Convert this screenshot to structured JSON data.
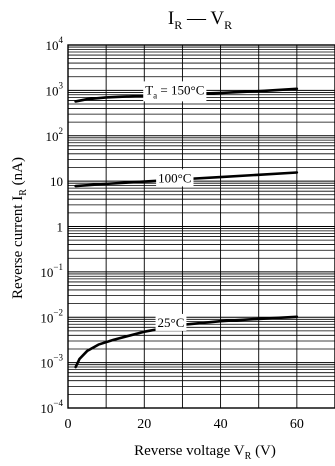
{
  "chart_data": {
    "type": "line",
    "title": {
      "main": "I",
      "main_sub": "R",
      "sep": " — ",
      "tail": "V",
      "tail_sub": "R"
    },
    "xlabel": {
      "main": "Reverse voltage  V",
      "sub": "R",
      "unit": "  (V)"
    },
    "ylabel": {
      "main": "Reverse current  I",
      "sub": "R",
      "unit": "  (nA)"
    },
    "x_scale": "linear",
    "y_scale": "log",
    "xlim": [
      0,
      70
    ],
    "ylim": [
      0.0001,
      10000
    ],
    "grid": true,
    "x_ticks": [
      {
        "value": 0,
        "label": "0"
      },
      {
        "value": 20,
        "label": "20"
      },
      {
        "value": 40,
        "label": "40"
      },
      {
        "value": 60,
        "label": "60"
      }
    ],
    "y_ticks": [
      {
        "value": 10000,
        "base": "10",
        "exp": "4"
      },
      {
        "value": 1000,
        "base": "10",
        "exp": "3"
      },
      {
        "value": 100,
        "base": "10",
        "exp": "2"
      },
      {
        "value": 10,
        "base": "10",
        "exp": ""
      },
      {
        "value": 1,
        "base": "1",
        "exp": ""
      },
      {
        "value": 0.1,
        "base": "10",
        "exp": "−1"
      },
      {
        "value": 0.01,
        "base": "10",
        "exp": "−2"
      },
      {
        "value": 0.001,
        "base": "10",
        "exp": "−3"
      },
      {
        "value": 0.0001,
        "base": "10",
        "exp": "−4"
      }
    ],
    "series": [
      {
        "label": {
          "pre": "T",
          "sub": "a",
          "post": " = 150°C"
        },
        "label_at": {
          "x": 28,
          "y": 1000
        },
        "x": [
          2,
          5,
          10,
          20,
          30,
          40,
          50,
          60
        ],
        "y": [
          570,
          640,
          700,
          760,
          820,
          880,
          960,
          1080
        ]
      },
      {
        "label": {
          "pre": "100°C",
          "sub": "",
          "post": ""
        },
        "label_at": {
          "x": 28,
          "y": 11.5
        },
        "x": [
          2,
          10,
          20,
          30,
          40,
          50,
          60
        ],
        "y": [
          7.8,
          8.7,
          9.8,
          11,
          12.3,
          13.8,
          15.5
        ]
      },
      {
        "label": {
          "pre": "25°C",
          "sub": "",
          "post": ""
        },
        "label_at": {
          "x": 27,
          "y": 0.0075
        },
        "x": [
          2,
          3,
          5,
          8,
          12,
          20,
          30,
          40,
          50,
          60
        ],
        "y": [
          0.0008,
          0.0012,
          0.0018,
          0.0025,
          0.0032,
          0.0048,
          0.0068,
          0.0082,
          0.0092,
          0.0102
        ]
      }
    ]
  }
}
